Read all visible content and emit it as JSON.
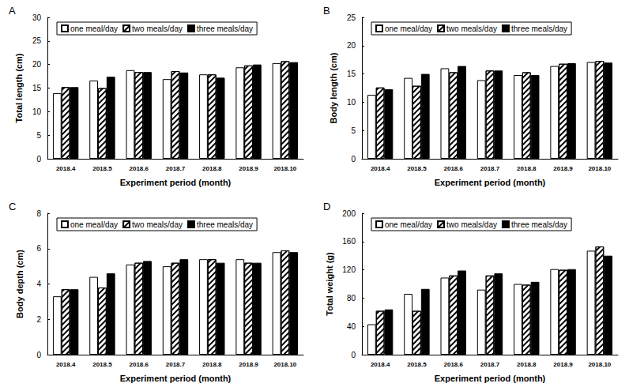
{
  "chart_data": [
    {
      "type": "bar",
      "title": "A",
      "x_label": "Experiment period (month)",
      "y_label": "Total length (cm)",
      "categories": [
        "2018.4",
        "2018.5",
        "2018.6",
        "2018.7",
        "2018.8",
        "2018.9",
        "2018.10"
      ],
      "series": [
        {
          "name": "one meal/day",
          "color": "#ffffff",
          "values": [
            13.9,
            16.6,
            18.8,
            16.9,
            17.9,
            19.4,
            20.3
          ]
        },
        {
          "name": "two meals/day",
          "color": "#ffffff",
          "values": [
            15.2,
            15.0,
            18.4,
            18.6,
            17.9,
            19.8,
            20.7
          ]
        },
        {
          "name": "three meals/day",
          "color": "#000000",
          "values": [
            15.2,
            17.4,
            18.4,
            18.3,
            17.2,
            20.0,
            20.5
          ]
        }
      ],
      "ylim": [
        0,
        30
      ],
      "yticks": [
        0,
        5,
        10,
        15,
        20,
        25,
        30
      ],
      "grid": false,
      "legend": "top"
    },
    {
      "type": "bar",
      "title": "B",
      "x_label": "Experiment period (month)",
      "y_label": "Body length (cm)",
      "categories": [
        "2018.4",
        "2018.5",
        "2018.6",
        "2018.7",
        "2018.8",
        "2018.9",
        "2018.10"
      ],
      "series": [
        {
          "name": "one meal/day",
          "color": "#ffffff",
          "values": [
            11.3,
            14.3,
            16.0,
            13.9,
            14.8,
            16.4,
            17.1
          ]
        },
        {
          "name": "two meals/day",
          "color": "#ffffff",
          "values": [
            12.6,
            12.9,
            15.3,
            15.6,
            15.3,
            16.8,
            17.3
          ]
        },
        {
          "name": "three meals/day",
          "color": "#000000",
          "values": [
            12.3,
            15.0,
            16.4,
            15.6,
            14.8,
            16.9,
            17.0
          ]
        }
      ],
      "ylim": [
        0,
        25
      ],
      "yticks": [
        0,
        5,
        10,
        15,
        20,
        25
      ],
      "grid": false,
      "legend": "top"
    },
    {
      "type": "bar",
      "title": "C",
      "x_label": "Experiment period (month)",
      "y_label": "Body depth (cm)",
      "categories": [
        "2018.4",
        "2018.5",
        "2018.6",
        "2018.7",
        "2018.8",
        "2018.9",
        "2018.10"
      ],
      "series": [
        {
          "name": "one meal/day",
          "color": "#ffffff",
          "values": [
            3.3,
            4.4,
            5.1,
            5.0,
            5.4,
            5.4,
            5.8
          ]
        },
        {
          "name": "two meals/day",
          "color": "#ffffff",
          "values": [
            3.7,
            3.8,
            5.2,
            5.2,
            5.4,
            5.2,
            5.9
          ]
        },
        {
          "name": "three meals/day",
          "color": "#000000",
          "values": [
            3.7,
            4.6,
            5.3,
            5.4,
            5.2,
            5.2,
            5.8
          ]
        }
      ],
      "ylim": [
        0,
        8
      ],
      "yticks": [
        0,
        2,
        4,
        6,
        8
      ],
      "grid": false,
      "legend": "top"
    },
    {
      "type": "bar",
      "title": "D",
      "x_label": "Experiment period (month)",
      "y_label": "Total weight (g)",
      "categories": [
        "2018.4",
        "2018.5",
        "2018.6",
        "2018.7",
        "2018.8",
        "2018.9",
        "2018.10"
      ],
      "series": [
        {
          "name": "one meal/day",
          "color": "#ffffff",
          "values": [
            43,
            86,
            109,
            92,
            100,
            121,
            147
          ]
        },
        {
          "name": "two meals/day",
          "color": "#ffffff",
          "values": [
            62,
            62,
            112,
            112,
            99,
            120,
            153
          ]
        },
        {
          "name": "three meals/day",
          "color": "#000000",
          "values": [
            64,
            93,
            119,
            115,
            103,
            121,
            140
          ]
        }
      ],
      "ylim": [
        0,
        200
      ],
      "yticks": [
        0,
        40,
        80,
        120,
        160,
        200
      ],
      "grid": false,
      "legend": "top"
    }
  ]
}
